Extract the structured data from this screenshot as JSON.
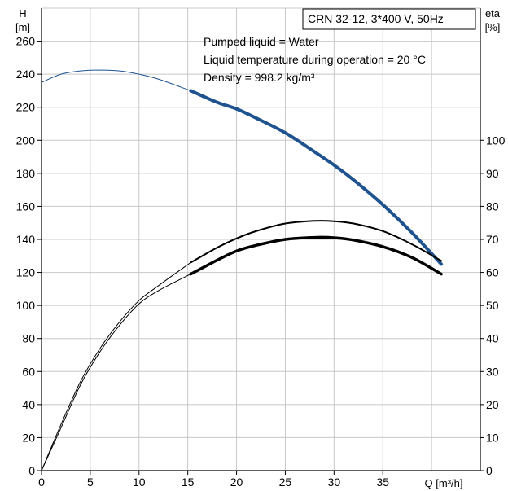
{
  "chart_data": {
    "type": "line",
    "title": "CRN 32-12, 3*400 V, 50Hz",
    "info_lines": [
      "Pumped liquid = Water",
      "Liquid temperature during operation = 20 °C",
      "Density = 998.2 kg/m³"
    ],
    "x_axis": {
      "label": "Q [m³/h]",
      "range": [
        0,
        45
      ],
      "ticks": [
        0,
        5,
        10,
        15,
        20,
        25,
        30,
        35
      ],
      "tick_labels": [
        "0",
        "5",
        "10",
        "15",
        "20",
        "25",
        "30",
        "35"
      ]
    },
    "y_left": {
      "label_line1": "H",
      "label_line2": "[m]",
      "range": [
        0,
        280
      ],
      "ticks": [
        0,
        20,
        40,
        60,
        80,
        100,
        120,
        140,
        160,
        180,
        200,
        220,
        240,
        260
      ],
      "tick_labels": [
        "0",
        "20",
        "40",
        "60",
        "80",
        "100",
        "120",
        "140",
        "160",
        "180",
        "200",
        "220",
        "240",
        "260"
      ]
    },
    "y_right": {
      "label_line1": "eta",
      "label_line2": "[%]",
      "range": [
        0,
        140
      ],
      "ticks": [
        0,
        10,
        20,
        30,
        40,
        50,
        60,
        70,
        80,
        90,
        100
      ],
      "tick_labels": [
        "0",
        "10",
        "20",
        "30",
        "40",
        "50",
        "60",
        "70",
        "80",
        "90",
        "100"
      ]
    },
    "grid": true,
    "colors": {
      "head_curve": "#1f5390",
      "eta_curve": "#000000",
      "grid": "#c8c8c8"
    },
    "series": [
      {
        "axis": "left",
        "color": "#1f5390",
        "x": [
          0,
          2,
          4,
          5.5,
          8,
          10,
          12,
          15.3,
          18,
          20,
          22,
          25,
          28,
          30,
          32,
          35,
          38,
          41
        ],
        "y": [
          235,
          240,
          242,
          242.5,
          242,
          240,
          237,
          230,
          223,
          219,
          213.5,
          204.5,
          193,
          185,
          176,
          161,
          144,
          125
        ]
      },
      {
        "axis": "right",
        "color": "#000000",
        "x": [
          0,
          2,
          4,
          6,
          8,
          10,
          12,
          15.3,
          18,
          20,
          22,
          25,
          28,
          30,
          32,
          35,
          38,
          41
        ],
        "y": [
          0,
          14,
          27,
          37,
          45,
          51.5,
          56,
          63,
          67.5,
          70.3,
          72.5,
          74.8,
          75.6,
          75.5,
          74.8,
          72.5,
          68.5,
          63.5
        ]
      },
      {
        "axis": "right",
        "color": "#000000",
        "x": [
          0,
          2,
          4,
          6,
          8,
          10,
          12,
          15.3,
          18,
          20,
          22,
          25,
          28,
          30,
          32,
          35,
          38,
          41
        ],
        "y": [
          0,
          13,
          26,
          36,
          44,
          50.5,
          54.5,
          59.5,
          63.7,
          66.5,
          68.2,
          70,
          70.6,
          70.5,
          69.8,
          67.8,
          64.5,
          59.5
        ]
      }
    ]
  }
}
